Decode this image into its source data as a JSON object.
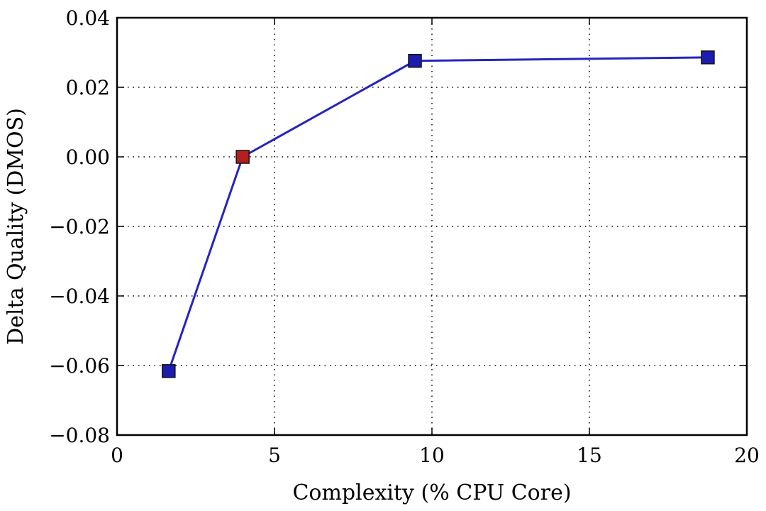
{
  "chart_data": {
    "type": "line",
    "title": "",
    "xlabel": "Complexity (% CPU Core)",
    "ylabel": "Delta Quality (DMOS)",
    "xlim": [
      0,
      20
    ],
    "ylim": [
      -0.08,
      0.04
    ],
    "xticks": [
      0,
      5,
      10,
      15,
      20
    ],
    "xtick_labels": [
      "0",
      "5",
      "10",
      "15",
      "20"
    ],
    "yticks": [
      -0.08,
      -0.06,
      -0.04,
      -0.02,
      0.0,
      0.02,
      0.04
    ],
    "ytick_labels": [
      "−0.08",
      "−0.06",
      "−0.04",
      "−0.02",
      "0.00",
      "0.02",
      "0.04"
    ],
    "grid": true,
    "grid_style": "dotted",
    "series": [
      {
        "x": [
          1.64,
          3.99,
          9.46,
          18.76
        ],
        "y": [
          -0.0616,
          0.0,
          0.0276,
          0.0286
        ],
        "line_color": "#2424c0",
        "marker": "square",
        "marker_colors": [
          "#1c1cb0",
          "#b41e1e",
          "#1c1cb0",
          "#1c1cb0"
        ]
      }
    ]
  }
}
